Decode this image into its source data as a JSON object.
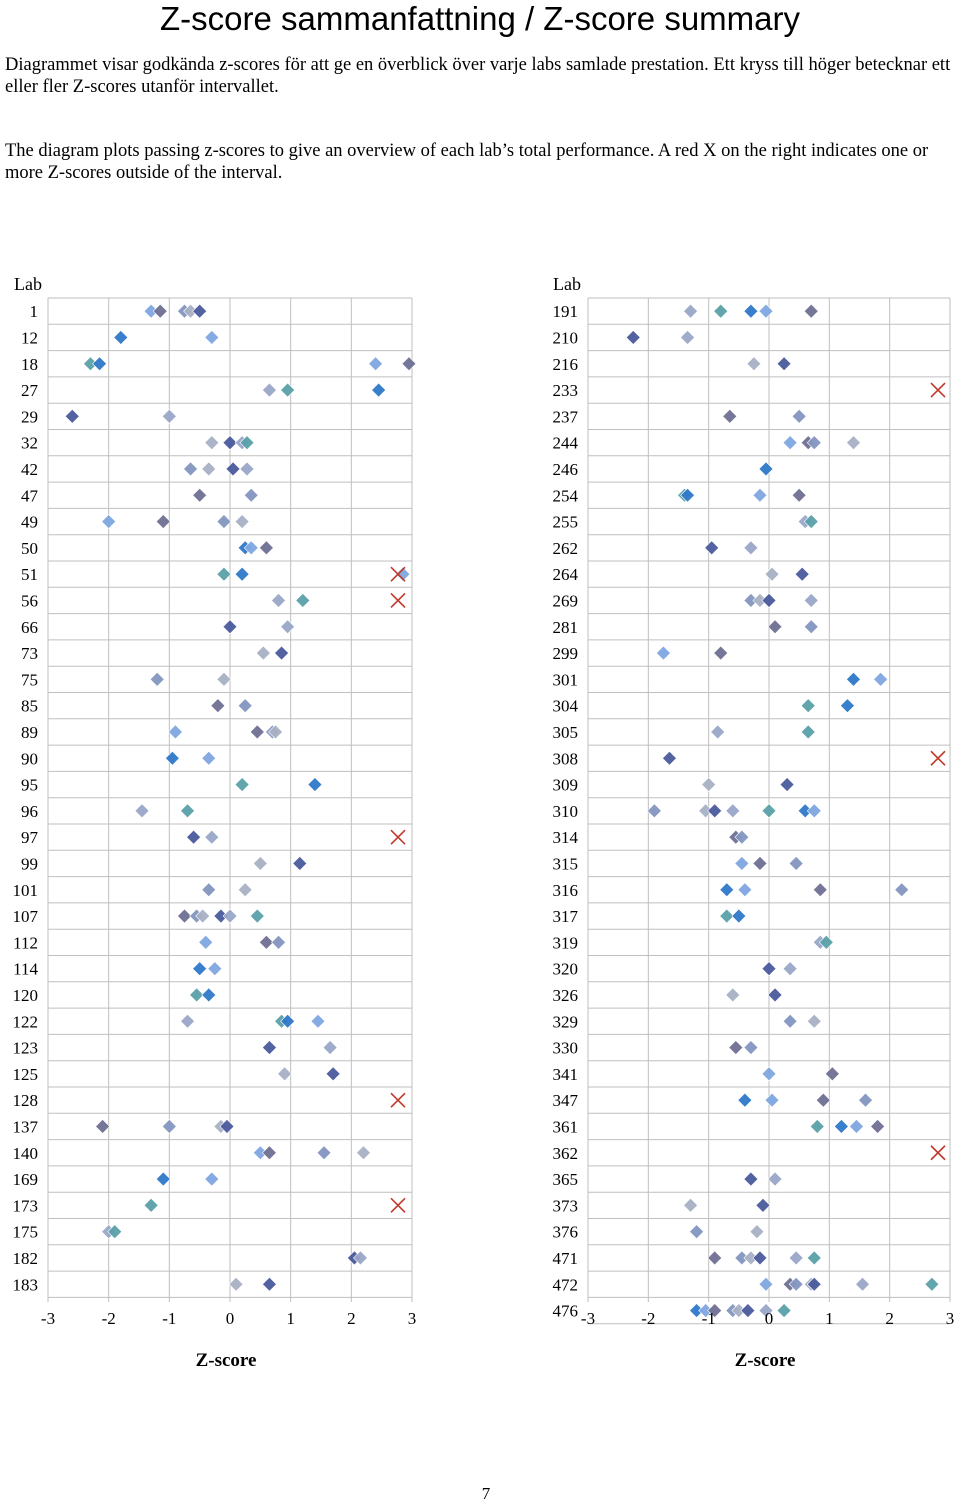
{
  "header": {
    "title": "Z-score sammanfattning / Z-score summary",
    "intro_sv": "Diagrammet visar godkända z-scores för att ge en överblick över varje labs samlade prestation. Ett kryss till höger betecknar ett eller fler Z-scores utanför intervallet.",
    "intro_en": "The diagram plots passing z-scores to give an overview of each lab’s total performance. A red X on the right indicates one or more Z-scores outside of the interval."
  },
  "page_number": "7",
  "colors": {
    "marker_palette": [
      "#7ea6e0",
      "#9aa6c8",
      "#8496c0",
      "#2e78c8",
      "#4a5a9c",
      "#6f6f94",
      "#5aa0a8",
      "#a8b0c4"
    ],
    "outlier_x": "#c0392b",
    "grid": "#bfbfbf"
  },
  "chart_data": [
    {
      "type": "scatter",
      "ylabel": "Lab",
      "xlabel": "Z-score",
      "xlim": [
        -3,
        3
      ],
      "xticks": [
        -3,
        -2,
        -1,
        0,
        1,
        2,
        3
      ],
      "grid": true,
      "outlier_marker": "red X at right edge",
      "labs": [
        {
          "lab": "1",
          "z": [
            -1.3,
            -1.15,
            -0.75,
            -0.65,
            -0.5
          ],
          "outside": false
        },
        {
          "lab": "12",
          "z": [
            -1.8,
            -0.3
          ],
          "outside": false
        },
        {
          "lab": "18",
          "z": [
            -2.3,
            -2.15,
            2.4,
            2.95
          ],
          "outside": false
        },
        {
          "lab": "27",
          "z": [
            0.65,
            0.95,
            2.45
          ],
          "outside": false
        },
        {
          "lab": "29",
          "z": [
            -2.6,
            -1.0
          ],
          "outside": false
        },
        {
          "lab": "32",
          "z": [
            -0.3,
            0.0,
            0.2,
            0.28
          ],
          "outside": false
        },
        {
          "lab": "42",
          "z": [
            -0.65,
            -0.35,
            0.05,
            0.28
          ],
          "outside": false
        },
        {
          "lab": "47",
          "z": [
            -0.5,
            0.35
          ],
          "outside": false
        },
        {
          "lab": "49",
          "z": [
            -2.0,
            -1.1,
            -0.1,
            0.2
          ],
          "outside": false
        },
        {
          "lab": "50",
          "z": [
            0.25,
            0.35,
            0.6
          ],
          "outside": false
        },
        {
          "lab": "51",
          "z": [
            -0.1,
            0.2,
            2.85
          ],
          "outside": true
        },
        {
          "lab": "56",
          "z": [
            0.8,
            1.2
          ],
          "outside": true
        },
        {
          "lab": "66",
          "z": [
            0.0,
            0.95
          ],
          "outside": false
        },
        {
          "lab": "73",
          "z": [
            0.55,
            0.85
          ],
          "outside": false
        },
        {
          "lab": "75",
          "z": [
            -1.2,
            -0.1
          ],
          "outside": false
        },
        {
          "lab": "85",
          "z": [
            -0.2,
            0.25
          ],
          "outside": false
        },
        {
          "lab": "89",
          "z": [
            -0.9,
            0.45,
            0.7,
            0.75
          ],
          "outside": false
        },
        {
          "lab": "90",
          "z": [
            -0.95,
            -0.35
          ],
          "outside": false
        },
        {
          "lab": "95",
          "z": [
            0.2,
            1.4
          ],
          "outside": false
        },
        {
          "lab": "96",
          "z": [
            -1.45,
            -0.7
          ],
          "outside": false
        },
        {
          "lab": "97",
          "z": [
            -0.6,
            -0.3
          ],
          "outside": true
        },
        {
          "lab": "99",
          "z": [
            0.5,
            1.15
          ],
          "outside": false
        },
        {
          "lab": "101",
          "z": [
            -0.35,
            0.25
          ],
          "outside": false
        },
        {
          "lab": "107",
          "z": [
            -0.75,
            -0.55,
            -0.45,
            -0.15,
            0.0,
            0.45
          ],
          "outside": false
        },
        {
          "lab": "112",
          "z": [
            -0.4,
            0.6,
            0.8
          ],
          "outside": false
        },
        {
          "lab": "114",
          "z": [
            -0.5,
            -0.25
          ],
          "outside": false
        },
        {
          "lab": "120",
          "z": [
            -0.55,
            -0.35
          ],
          "outside": false
        },
        {
          "lab": "122",
          "z": [
            -0.7,
            0.85,
            0.95,
            1.45
          ],
          "outside": false
        },
        {
          "lab": "123",
          "z": [
            0.65,
            1.65
          ],
          "outside": false
        },
        {
          "lab": "125",
          "z": [
            0.9,
            1.7
          ],
          "outside": false
        },
        {
          "lab": "128",
          "z": [],
          "outside": true
        },
        {
          "lab": "137",
          "z": [
            -2.1,
            -1.0,
            -0.15,
            -0.05
          ],
          "outside": false
        },
        {
          "lab": "140",
          "z": [
            0.5,
            0.65,
            1.55,
            2.2
          ],
          "outside": false
        },
        {
          "lab": "169",
          "z": [
            -1.1,
            -0.3
          ],
          "outside": false
        },
        {
          "lab": "173",
          "z": [
            -1.3
          ],
          "outside": true
        },
        {
          "lab": "175",
          "z": [
            -2.0,
            -1.9
          ],
          "outside": false
        },
        {
          "lab": "182",
          "z": [
            2.05,
            2.15
          ],
          "outside": false
        },
        {
          "lab": "183",
          "z": [
            0.1,
            0.65
          ],
          "outside": false
        }
      ]
    },
    {
      "type": "scatter",
      "ylabel": "Lab",
      "xlabel": "Z-score",
      "xlim": [
        -3,
        3
      ],
      "xticks": [
        -3,
        -2,
        -1,
        0,
        1,
        2,
        3
      ],
      "grid": true,
      "outlier_marker": "red X at right edge",
      "labs": [
        {
          "lab": "191",
          "z": [
            -1.3,
            -0.8,
            -0.3,
            -0.05,
            0.7
          ],
          "outside": false
        },
        {
          "lab": "210",
          "z": [
            -2.25,
            -1.35
          ],
          "outside": false
        },
        {
          "lab": "216",
          "z": [
            -0.25,
            0.25
          ],
          "outside": false
        },
        {
          "lab": "233",
          "z": [],
          "outside": true
        },
        {
          "lab": "237",
          "z": [
            -0.65,
            0.5
          ],
          "outside": false
        },
        {
          "lab": "244",
          "z": [
            0.35,
            0.65,
            0.75,
            1.4
          ],
          "outside": false
        },
        {
          "lab": "246",
          "z": [
            -0.05
          ],
          "outside": false
        },
        {
          "lab": "254",
          "z": [
            -1.4,
            -1.35,
            -0.15,
            0.5
          ],
          "outside": false
        },
        {
          "lab": "255",
          "z": [
            0.6,
            0.7
          ],
          "outside": false
        },
        {
          "lab": "262",
          "z": [
            -0.95,
            -0.3
          ],
          "outside": false
        },
        {
          "lab": "264",
          "z": [
            0.05,
            0.55
          ],
          "outside": false
        },
        {
          "lab": "269",
          "z": [
            -0.3,
            -0.15,
            0.0,
            0.7
          ],
          "outside": false
        },
        {
          "lab": "281",
          "z": [
            0.1,
            0.7
          ],
          "outside": false
        },
        {
          "lab": "299",
          "z": [
            -1.75,
            -0.8
          ],
          "outside": false
        },
        {
          "lab": "301",
          "z": [
            1.4,
            1.85
          ],
          "outside": false
        },
        {
          "lab": "304",
          "z": [
            0.65,
            1.3
          ],
          "outside": false
        },
        {
          "lab": "305",
          "z": [
            -0.85,
            0.65
          ],
          "outside": false
        },
        {
          "lab": "308",
          "z": [
            -1.65
          ],
          "outside": true
        },
        {
          "lab": "309",
          "z": [
            -1.0,
            0.3
          ],
          "outside": false
        },
        {
          "lab": "310",
          "z": [
            -1.9,
            -1.05,
            -0.9,
            -0.6,
            0.0,
            0.6,
            0.75
          ],
          "outside": false
        },
        {
          "lab": "314",
          "z": [
            -0.55,
            -0.45
          ],
          "outside": false
        },
        {
          "lab": "315",
          "z": [
            -0.45,
            -0.15,
            0.45
          ],
          "outside": false
        },
        {
          "lab": "316",
          "z": [
            -0.7,
            -0.4,
            0.85,
            2.2
          ],
          "outside": false
        },
        {
          "lab": "317",
          "z": [
            -0.7,
            -0.5
          ],
          "outside": false
        },
        {
          "lab": "319",
          "z": [
            0.85,
            0.95
          ],
          "outside": false
        },
        {
          "lab": "320",
          "z": [
            0.0,
            0.35
          ],
          "outside": false
        },
        {
          "lab": "326",
          "z": [
            -0.6,
            0.1
          ],
          "outside": false
        },
        {
          "lab": "329",
          "z": [
            0.35,
            0.75
          ],
          "outside": false
        },
        {
          "lab": "330",
          "z": [
            -0.55,
            -0.3
          ],
          "outside": false
        },
        {
          "lab": "341",
          "z": [
            0.0,
            1.05
          ],
          "outside": false
        },
        {
          "lab": "347",
          "z": [
            -0.4,
            0.05,
            0.9,
            1.6
          ],
          "outside": false
        },
        {
          "lab": "361",
          "z": [
            0.8,
            1.2,
            1.45,
            1.8
          ],
          "outside": false
        },
        {
          "lab": "362",
          "z": [],
          "outside": true
        },
        {
          "lab": "365",
          "z": [
            -0.3,
            0.1
          ],
          "outside": false
        },
        {
          "lab": "373",
          "z": [
            -1.3,
            -0.1
          ],
          "outside": false
        },
        {
          "lab": "376",
          "z": [
            -1.2,
            -0.2
          ],
          "outside": false
        },
        {
          "lab": "471",
          "z": [
            -0.9,
            -0.45,
            -0.3,
            -0.15,
            0.45,
            0.75
          ],
          "outside": false
        },
        {
          "lab": "472",
          "z": [
            -0.05,
            0.35,
            0.45,
            0.7,
            0.75,
            1.55,
            2.7
          ],
          "outside": false
        },
        {
          "lab": "476",
          "z": [
            -1.2,
            -1.05,
            -0.9,
            -0.6,
            -0.5,
            -0.35,
            -0.05,
            0.25
          ],
          "outside": false
        }
      ]
    }
  ],
  "pages": [
    {
      "ylabel": "Lab",
      "xlabel": "Z-score"
    },
    {
      "ylabel": "Lab",
      "xlabel": "Z-score"
    }
  ]
}
